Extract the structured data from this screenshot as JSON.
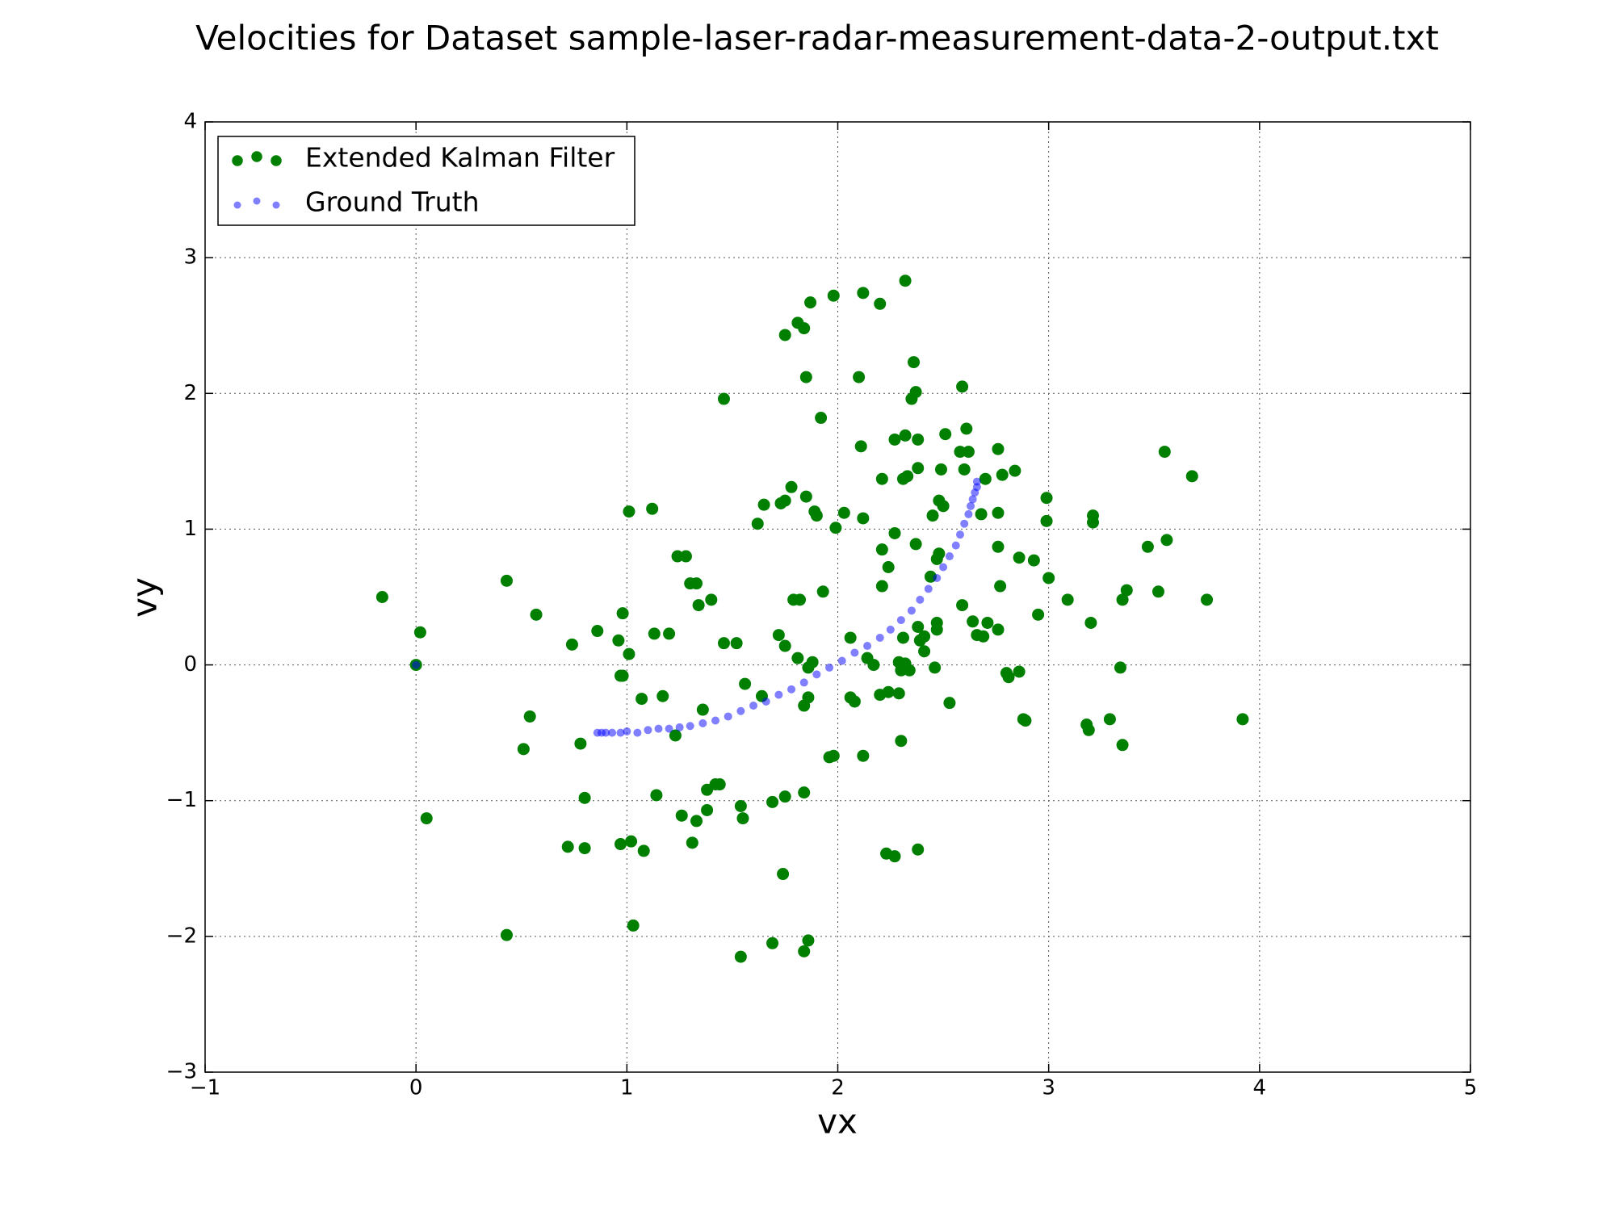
{
  "chart_data": {
    "type": "scatter",
    "title": "Velocities for Dataset sample-laser-radar-measurement-data-2-output.txt",
    "x_label": "vx",
    "y_label": "vy",
    "xlim": [
      -1,
      5
    ],
    "ylim": [
      -3,
      4
    ],
    "xticks": [
      {
        "value": -1,
        "label": "−1"
      },
      0,
      1,
      2,
      3,
      4,
      5
    ],
    "yticks": [
      {
        "value": -3,
        "label": "−3"
      },
      {
        "value": -2,
        "label": "−2"
      },
      {
        "value": -1,
        "label": "−1"
      },
      0,
      1,
      2,
      3,
      4
    ],
    "grid": true,
    "legend": "upper left",
    "series": [
      {
        "name": "Extended Kalman Filter",
        "color": "#007f00",
        "x": [
          -0.16,
          0,
          0.02,
          0.05,
          0.43,
          0.43,
          0.54,
          0.57,
          0.51,
          0.72,
          0.74,
          0.78,
          0.8,
          0.8,
          0.86,
          0.96,
          0.97,
          0.98,
          0.98,
          0.97,
          1.01,
          1.01,
          1.02,
          1.03,
          1.07,
          1.08,
          1.12,
          1.13,
          1.14,
          1.17,
          1.2,
          1.23,
          1.24,
          1.28,
          1.26,
          1.3,
          1.33,
          1.31,
          1.33,
          1.34,
          1.36,
          1.38,
          1.38,
          1.4,
          1.42,
          1.44,
          1.46,
          1.46,
          1.52,
          1.54,
          1.55,
          1.54,
          1.56,
          1.62,
          1.64,
          1.65,
          1.69,
          1.69,
          1.72,
          1.73,
          1.75,
          1.75,
          1.75,
          1.74,
          1.75,
          1.78,
          1.79,
          1.81,
          1.81,
          1.82,
          1.84,
          1.84,
          1.84,
          1.84,
          1.85,
          1.85,
          1.86,
          1.86,
          1.87,
          1.86,
          1.88,
          1.89,
          1.9,
          1.92,
          1.93,
          1.96,
          1.98,
          1.98,
          1.99,
          2.03,
          2.06,
          2.06,
          2.08,
          2.1,
          2.11,
          2.12,
          2.12,
          2.12,
          2.14,
          2.17,
          2.2,
          2.2,
          2.21,
          2.21,
          2.21,
          2.23,
          2.24,
          2.24,
          2.27,
          2.27,
          2.27,
          2.29,
          2.29,
          2.3,
          2.3,
          2.31,
          2.31,
          2.32,
          2.32,
          2.32,
          2.33,
          2.34,
          2.35,
          2.36,
          2.37,
          2.37,
          2.38,
          2.38,
          2.38,
          2.38,
          2.39,
          2.41,
          2.41,
          2.44,
          2.45,
          2.46,
          2.47,
          2.47,
          2.47,
          2.48,
          2.48,
          2.49,
          2.5,
          2.51,
          2.53,
          2.58,
          2.59,
          2.59,
          2.6,
          2.61,
          2.62,
          2.64,
          2.66,
          2.68,
          2.69,
          2.7,
          2.71,
          2.76,
          2.76,
          2.76,
          2.76,
          2.77,
          2.78,
          2.8,
          2.81,
          2.84,
          2.86,
          2.86,
          2.88,
          2.89,
          2.93,
          2.95,
          2.99,
          2.99,
          3.0,
          3.09,
          3.18,
          3.19,
          3.2,
          3.21,
          3.21,
          3.29,
          3.34,
          3.35,
          3.35,
          3.37,
          3.47,
          3.52,
          3.55,
          3.56,
          3.68,
          3.75,
          3.92
        ],
        "values": [
          0.5,
          0,
          0.24,
          -1.13,
          0.62,
          -1.99,
          -0.38,
          0.37,
          -0.62,
          -1.34,
          0.15,
          -0.58,
          -0.98,
          -1.35,
          0.25,
          0.18,
          -0.08,
          0.38,
          -0.08,
          -1.32,
          0.08,
          1.13,
          -1.3,
          -1.92,
          -0.25,
          -1.37,
          1.15,
          0.23,
          -0.96,
          -0.23,
          0.23,
          -0.52,
          0.8,
          0.8,
          -1.11,
          0.6,
          0.6,
          -1.31,
          -1.15,
          0.44,
          -0.33,
          -1.07,
          -0.92,
          0.48,
          -0.88,
          -0.88,
          0.16,
          1.96,
          0.16,
          -1.04,
          -1.13,
          -2.15,
          -0.14,
          1.04,
          -0.23,
          1.18,
          -1.01,
          -2.05,
          0.22,
          1.19,
          2.43,
          0.14,
          -0.97,
          -1.54,
          1.21,
          1.31,
          0.48,
          0.05,
          2.52,
          0.48,
          2.48,
          -0.3,
          -0.94,
          -2.11,
          2.12,
          1.24,
          -2.03,
          -0.02,
          2.67,
          -0.24,
          0.02,
          1.13,
          1.1,
          1.82,
          0.54,
          -0.68,
          -0.67,
          2.72,
          1.01,
          1.12,
          0.2,
          -0.24,
          -0.27,
          2.12,
          1.61,
          -0.67,
          2.74,
          1.08,
          0.05,
          0.0,
          2.66,
          -0.22,
          1.37,
          0.58,
          0.85,
          -1.39,
          -0.2,
          0.72,
          -1.41,
          1.66,
          0.97,
          -0.21,
          0.02,
          -0.04,
          -0.56,
          1.37,
          0.2,
          0.01,
          2.83,
          1.69,
          1.39,
          -0.04,
          1.96,
          2.23,
          0.89,
          2.01,
          -1.36,
          0.28,
          1.45,
          1.66,
          0.18,
          0.1,
          0.21,
          0.65,
          1.1,
          -0.02,
          0.26,
          0.31,
          0.78,
          1.21,
          0.82,
          1.44,
          1.17,
          1.7,
          -0.28,
          1.57,
          0.44,
          2.05,
          1.44,
          1.74,
          1.57,
          0.32,
          0.22,
          1.11,
          0.21,
          1.37,
          0.31,
          1.59,
          0.87,
          0.26,
          1.12,
          0.58,
          1.4,
          -0.06,
          -0.09,
          1.43,
          -0.05,
          0.79,
          -0.4,
          -0.41,
          0.77,
          0.37,
          1.23,
          1.06,
          0.64,
          0.48,
          -0.44,
          -0.48,
          0.31,
          1.05,
          1.1,
          -0.4,
          -0.02,
          0.48,
          -0.59,
          0.55,
          0.87,
          0.54,
          1.57,
          0.92,
          1.39,
          0.48,
          -0.4
        ]
      },
      {
        "name": "Ground Truth",
        "color": "#0000ff",
        "x": [
          0.0,
          0.86,
          0.88,
          0.9,
          0.93,
          0.97,
          1.0,
          1.05,
          1.1,
          1.15,
          1.2,
          1.25,
          1.3,
          1.36,
          1.42,
          1.48,
          1.54,
          1.6,
          1.66,
          1.72,
          1.78,
          1.84,
          1.9,
          1.96,
          2.02,
          2.08,
          2.14,
          2.2,
          2.25,
          2.3,
          2.35,
          2.39,
          2.43,
          2.47,
          2.5,
          2.53,
          2.56,
          2.58,
          2.6,
          2.62,
          2.63,
          2.64,
          2.65,
          2.66,
          2.66
        ],
        "values": [
          0.0,
          -0.5,
          -0.5,
          -0.5,
          -0.5,
          -0.5,
          -0.49,
          -0.5,
          -0.48,
          -0.47,
          -0.47,
          -0.46,
          -0.45,
          -0.43,
          -0.41,
          -0.38,
          -0.34,
          -0.3,
          -0.27,
          -0.22,
          -0.18,
          -0.13,
          -0.07,
          -0.02,
          0.03,
          0.09,
          0.14,
          0.2,
          0.26,
          0.33,
          0.4,
          0.48,
          0.56,
          0.64,
          0.72,
          0.8,
          0.88,
          0.96,
          1.04,
          1.11,
          1.17,
          1.22,
          1.27,
          1.31,
          1.35
        ]
      }
    ]
  }
}
